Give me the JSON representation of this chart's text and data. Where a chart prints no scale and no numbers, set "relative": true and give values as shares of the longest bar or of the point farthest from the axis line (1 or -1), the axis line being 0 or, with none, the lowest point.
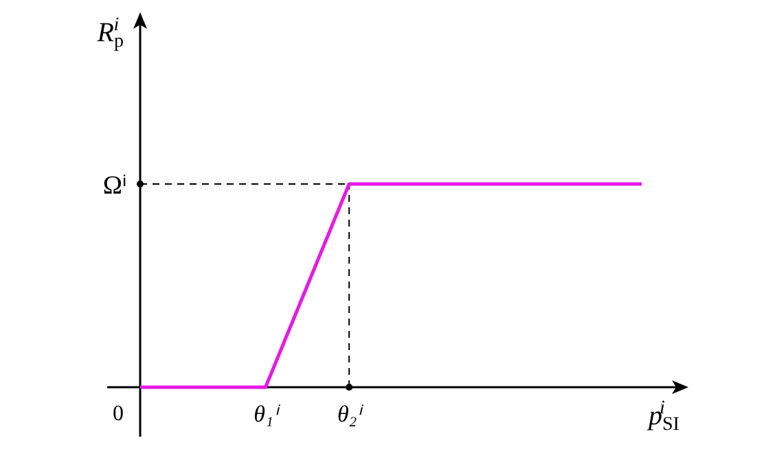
{
  "chart_data": {
    "type": "line",
    "xlabel": "p$_{SI}$$^{i}$",
    "ylabel": "R$_{p}$$^{i}$",
    "categories": [
      null,
      null,
      null,
      "θ₁ⁱ",
      null,
      "θ₂ⁱ",
      null,
      null,
      null,
      null,
      null,
      null,
      null
    ],
    "relative": true,
    "series": [
      {
        "color": "#e619e6",
        "values": [
          0,
          0,
          0,
          0,
          0.5,
          1,
          1,
          1,
          1,
          1,
          1,
          1,
          1
        ]
      }
    ],
    "annotations": [
      "0"
    ],
    "ref_lines": [
      {
        "axis": "y",
        "value": 1,
        "label": "Ωⁱ",
        "line_style": "dashed",
        "color": "#000000"
      },
      {
        "axis": "x",
        "value": "θ₂ⁱ",
        "line_style": "dashed",
        "color": "#000000"
      }
    ],
    "grid": false,
    "marker": "none",
    "line_style": "solid"
  }
}
